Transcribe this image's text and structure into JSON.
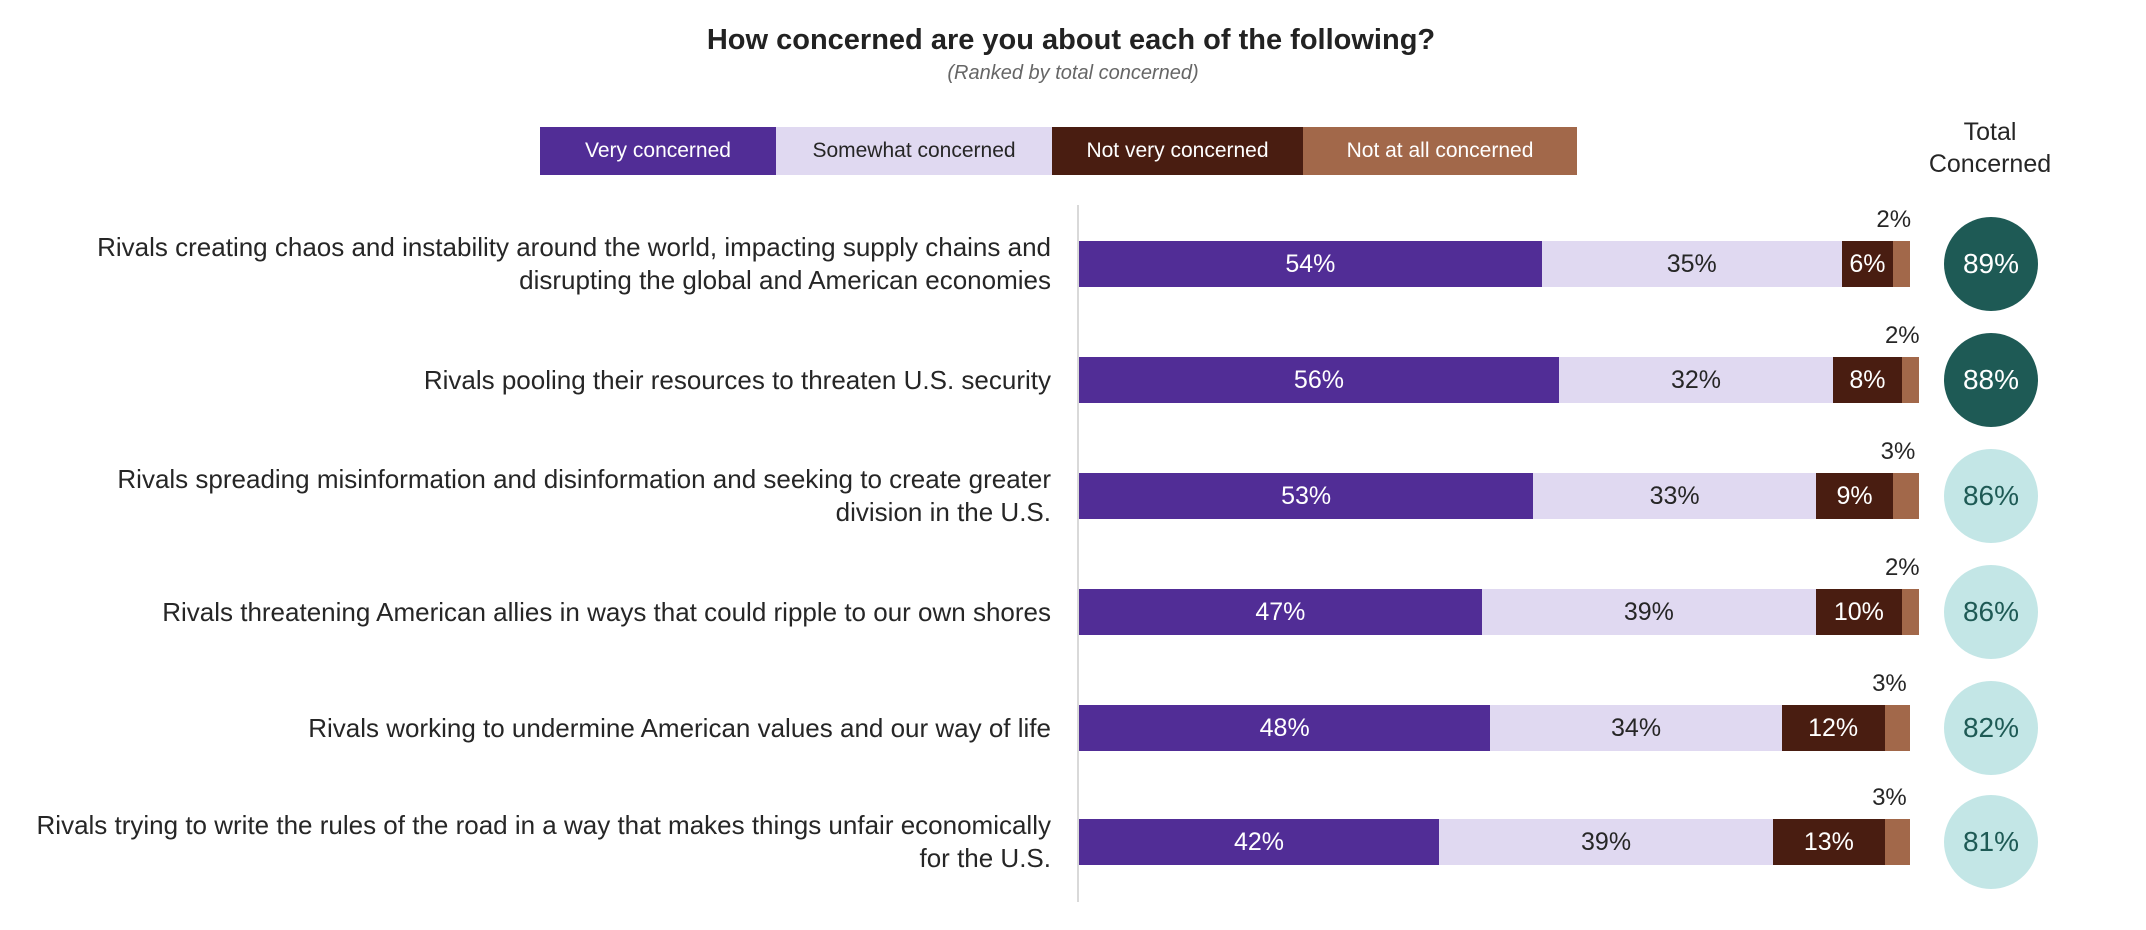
{
  "chart_data": {
    "type": "bar",
    "orientation": "horizontal",
    "stacked": true,
    "title": "How concerned are you about each of the following?",
    "subtitle": "(Ranked by total concerned)",
    "total_header": [
      "Total",
      "Concerned"
    ],
    "legend": [
      {
        "name": "Very concerned",
        "color": "#512D96",
        "text_color": "#FFFFFF"
      },
      {
        "name": "Somewhat concerned",
        "color": "#E0D9F1",
        "text_color": "#262626"
      },
      {
        "name": "Not very concerned",
        "color": "#491D11",
        "text_color": "#FFFFFF"
      },
      {
        "name": "Not at all concerned",
        "color": "#A2684A",
        "text_color": "#FFFFFF"
      }
    ],
    "categories": [
      [
        "Rivals creating chaos and instability around the world, impacting supply chains and",
        "disrupting the global and American economies"
      ],
      [
        "Rivals pooling their resources to threaten U.S. security"
      ],
      [
        "Rivals spreading misinformation and disinformation and seeking to create greater",
        "division in the U.S."
      ],
      [
        "Rivals threatening American allies in ways that could ripple to our own shores"
      ],
      [
        "Rivals working to undermine American values and our way of life"
      ],
      [
        "Rivals trying to write the rules of the road in a  way that makes things unfair economically",
        "for the U.S."
      ]
    ],
    "series": [
      {
        "name": "Very concerned",
        "values": [
          54,
          56,
          53,
          47,
          48,
          42
        ]
      },
      {
        "name": "Somewhat concerned",
        "values": [
          35,
          32,
          33,
          39,
          34,
          39
        ]
      },
      {
        "name": "Not very concerned",
        "values": [
          6,
          8,
          9,
          10,
          12,
          13
        ]
      },
      {
        "name": "Not at all concerned",
        "values": [
          2,
          2,
          3,
          2,
          3,
          3
        ]
      }
    ],
    "total_concerned": [
      89,
      88,
      86,
      86,
      82,
      81
    ],
    "total_colors": {
      "high": "#1E5A55",
      "high_text": "#FFFFFF",
      "low": "#C3E6E6",
      "low_text": "#1E5A55",
      "high_rows": [
        0,
        1
      ]
    },
    "value_suffix": "%",
    "xlim": [
      0,
      100
    ]
  }
}
